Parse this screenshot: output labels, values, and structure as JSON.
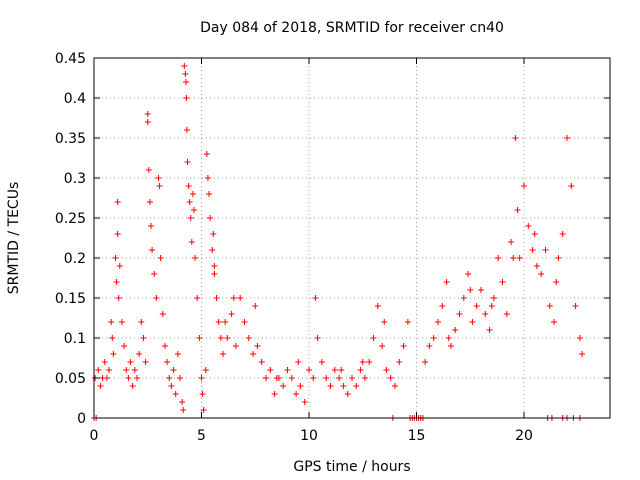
{
  "chart_data": {
    "type": "scatter",
    "title": "Day 084 of 2018, SRMTID for receiver cn40",
    "xlabel": "GPS time / hours",
    "ylabel": "SRMTID / TECUs",
    "xlim": [
      0,
      24
    ],
    "ylim": [
      0,
      0.45
    ],
    "xticks": [
      0,
      5,
      10,
      15,
      20
    ],
    "xtick_labels": [
      "0",
      "5",
      "10",
      "15",
      "20"
    ],
    "yticks": [
      0,
      0.05,
      0.1,
      0.15,
      0.2,
      0.25,
      0.3,
      0.35,
      0.4,
      0.45
    ],
    "ytick_labels": [
      "0",
      "0.05",
      "0.1",
      "0.15",
      "0.2",
      "0.25",
      "0.3",
      "0.35",
      "0.4",
      "0.45"
    ],
    "grid": true,
    "marker": "plus",
    "color": "#ff0000",
    "series": [
      {
        "name": "SRMTID",
        "points": [
          [
            0.0,
            0.0
          ],
          [
            0.05,
            0.05
          ],
          [
            0.1,
            0.0
          ],
          [
            0.2,
            0.06
          ],
          [
            0.3,
            0.04
          ],
          [
            0.4,
            0.05
          ],
          [
            0.5,
            0.07
          ],
          [
            0.6,
            0.05
          ],
          [
            0.7,
            0.06
          ],
          [
            0.8,
            0.12
          ],
          [
            0.85,
            0.1
          ],
          [
            0.9,
            0.08
          ],
          [
            1.0,
            0.2
          ],
          [
            1.05,
            0.17
          ],
          [
            1.1,
            0.27
          ],
          [
            1.1,
            0.23
          ],
          [
            1.15,
            0.15
          ],
          [
            1.2,
            0.19
          ],
          [
            1.3,
            0.12
          ],
          [
            1.4,
            0.09
          ],
          [
            1.5,
            0.06
          ],
          [
            1.6,
            0.05
          ],
          [
            1.7,
            0.07
          ],
          [
            1.8,
            0.04
          ],
          [
            1.9,
            0.06
          ],
          [
            2.0,
            0.05
          ],
          [
            2.1,
            0.08
          ],
          [
            2.2,
            0.12
          ],
          [
            2.3,
            0.1
          ],
          [
            2.4,
            0.07
          ],
          [
            2.5,
            0.37
          ],
          [
            2.5,
            0.38
          ],
          [
            2.55,
            0.31
          ],
          [
            2.6,
            0.27
          ],
          [
            2.65,
            0.24
          ],
          [
            2.7,
            0.21
          ],
          [
            2.8,
            0.18
          ],
          [
            2.9,
            0.15
          ],
          [
            3.0,
            0.3
          ],
          [
            3.05,
            0.29
          ],
          [
            3.1,
            0.2
          ],
          [
            3.2,
            0.13
          ],
          [
            3.3,
            0.09
          ],
          [
            3.4,
            0.07
          ],
          [
            3.5,
            0.05
          ],
          [
            3.6,
            0.04
          ],
          [
            3.7,
            0.06
          ],
          [
            3.8,
            0.03
          ],
          [
            3.9,
            0.08
          ],
          [
            4.0,
            0.05
          ],
          [
            4.1,
            0.02
          ],
          [
            4.15,
            0.01
          ],
          [
            4.2,
            0.44
          ],
          [
            4.25,
            0.43
          ],
          [
            4.28,
            0.42
          ],
          [
            4.3,
            0.4
          ],
          [
            4.32,
            0.36
          ],
          [
            4.35,
            0.32
          ],
          [
            4.4,
            0.29
          ],
          [
            4.45,
            0.27
          ],
          [
            4.5,
            0.25
          ],
          [
            4.55,
            0.22
          ],
          [
            4.6,
            0.28
          ],
          [
            4.65,
            0.26
          ],
          [
            4.7,
            0.2
          ],
          [
            4.8,
            0.15
          ],
          [
            4.9,
            0.1
          ],
          [
            5.0,
            0.05
          ],
          [
            5.05,
            0.03
          ],
          [
            5.1,
            0.01
          ],
          [
            5.2,
            0.06
          ],
          [
            5.25,
            0.33
          ],
          [
            5.3,
            0.3
          ],
          [
            5.35,
            0.28
          ],
          [
            5.4,
            0.25
          ],
          [
            5.5,
            0.21
          ],
          [
            5.55,
            0.23
          ],
          [
            5.6,
            0.19
          ],
          [
            5.7,
            0.15
          ],
          [
            5.8,
            0.12
          ],
          [
            5.9,
            0.1
          ],
          [
            6.0,
            0.08
          ],
          [
            6.1,
            0.12
          ],
          [
            6.2,
            0.1
          ],
          [
            6.4,
            0.13
          ],
          [
            6.6,
            0.09
          ],
          [
            6.8,
            0.15
          ],
          [
            7.0,
            0.12
          ],
          [
            7.2,
            0.1
          ],
          [
            7.4,
            0.08
          ],
          [
            7.6,
            0.09
          ],
          [
            7.8,
            0.07
          ],
          [
            8.0,
            0.05
          ],
          [
            8.2,
            0.06
          ],
          [
            8.4,
            0.03
          ],
          [
            8.6,
            0.05
          ],
          [
            8.8,
            0.04
          ],
          [
            9.0,
            0.06
          ],
          [
            9.2,
            0.05
          ],
          [
            9.4,
            0.03
          ],
          [
            9.6,
            0.04
          ],
          [
            9.8,
            0.02
          ],
          [
            10.0,
            0.06
          ],
          [
            10.2,
            0.05
          ],
          [
            10.3,
            0.15
          ],
          [
            10.4,
            0.1
          ],
          [
            10.6,
            0.07
          ],
          [
            10.8,
            0.05
          ],
          [
            11.0,
            0.04
          ],
          [
            11.2,
            0.06
          ],
          [
            11.4,
            0.05
          ],
          [
            11.6,
            0.04
          ],
          [
            11.8,
            0.03
          ],
          [
            12.0,
            0.05
          ],
          [
            12.2,
            0.04
          ],
          [
            12.4,
            0.06
          ],
          [
            12.6,
            0.05
          ],
          [
            12.8,
            0.07
          ],
          [
            13.0,
            0.1
          ],
          [
            13.2,
            0.14
          ],
          [
            13.4,
            0.09
          ],
          [
            13.6,
            0.06
          ],
          [
            13.8,
            0.05
          ],
          [
            14.0,
            0.04
          ],
          [
            14.2,
            0.07
          ],
          [
            14.4,
            0.09
          ],
          [
            14.6,
            0.12
          ],
          [
            14.7,
            0.0
          ],
          [
            14.8,
            0.0
          ],
          [
            15.0,
            0.0
          ],
          [
            15.2,
            0.0
          ],
          [
            15.4,
            0.07
          ],
          [
            15.6,
            0.09
          ],
          [
            15.8,
            0.1
          ],
          [
            16.0,
            0.12
          ],
          [
            16.2,
            0.14
          ],
          [
            16.4,
            0.17
          ],
          [
            16.6,
            0.09
          ],
          [
            16.8,
            0.11
          ],
          [
            17.0,
            0.13
          ],
          [
            17.2,
            0.15
          ],
          [
            17.4,
            0.18
          ],
          [
            17.6,
            0.12
          ],
          [
            17.8,
            0.14
          ],
          [
            18.0,
            0.16
          ],
          [
            18.2,
            0.13
          ],
          [
            18.4,
            0.11
          ],
          [
            18.6,
            0.15
          ],
          [
            18.8,
            0.2
          ],
          [
            19.0,
            0.17
          ],
          [
            19.2,
            0.13
          ],
          [
            19.4,
            0.22
          ],
          [
            19.6,
            0.35
          ],
          [
            19.7,
            0.26
          ],
          [
            19.8,
            0.2
          ],
          [
            20.0,
            0.29
          ],
          [
            20.2,
            0.24
          ],
          [
            20.4,
            0.21
          ],
          [
            20.6,
            0.19
          ],
          [
            20.8,
            0.18
          ],
          [
            21.0,
            0.21
          ],
          [
            21.2,
            0.14
          ],
          [
            21.4,
            0.12
          ],
          [
            21.6,
            0.2
          ],
          [
            21.8,
            0.23
          ],
          [
            22.0,
            0.35
          ],
          [
            22.2,
            0.29
          ],
          [
            22.4,
            0.14
          ],
          [
            22.6,
            0.1
          ],
          [
            22.7,
            0.08
          ],
          [
            21.1,
            0.0
          ],
          [
            21.3,
            0.0
          ],
          [
            21.8,
            0.0
          ],
          [
            22.0,
            0.0
          ],
          [
            22.3,
            0.0
          ],
          [
            22.6,
            0.0
          ],
          [
            13.9,
            0.0
          ],
          [
            15.3,
            0.0
          ],
          [
            15.1,
            0.0
          ],
          [
            14.9,
            0.0
          ],
          [
            5.6,
            0.18
          ],
          [
            6.5,
            0.15
          ],
          [
            7.5,
            0.14
          ],
          [
            8.5,
            0.05
          ],
          [
            9.5,
            0.07
          ],
          [
            11.5,
            0.06
          ],
          [
            12.5,
            0.07
          ],
          [
            13.5,
            0.12
          ],
          [
            16.5,
            0.1
          ],
          [
            17.5,
            0.16
          ],
          [
            18.5,
            0.14
          ],
          [
            19.5,
            0.2
          ],
          [
            20.5,
            0.23
          ],
          [
            21.5,
            0.17
          ]
        ]
      }
    ]
  }
}
